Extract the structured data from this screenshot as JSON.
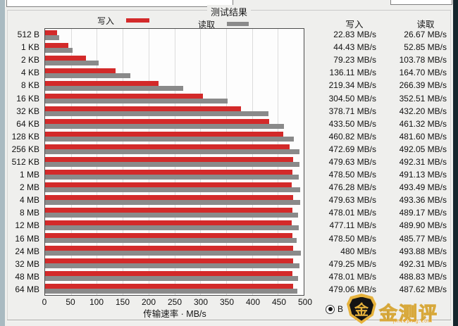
{
  "panel": {
    "groupbox_title": "测试结果",
    "legend": {
      "write_label": "写入",
      "read_label": "读取"
    },
    "colors": {
      "write": "#d32a2a",
      "read": "#8a8a8a",
      "plot_bg": "#fdfdfd",
      "grid": "#dcdcdc"
    },
    "radio_label": "B",
    "watermark": {
      "shield_char": "金",
      "brand": "金测评",
      "site": "jinceping.com"
    }
  },
  "chart_data": {
    "type": "bar",
    "orientation": "horizontal",
    "title": "测试结果",
    "xlabel": "传输速率 · MB/s",
    "xlim": [
      0,
      500
    ],
    "xticks": [
      0,
      50,
      100,
      150,
      200,
      250,
      300,
      350,
      400,
      450,
      500
    ],
    "grid": true,
    "legend_position": "top",
    "categories": [
      "512 B",
      "1 KB",
      "2 KB",
      "4 KB",
      "8 KB",
      "16 KB",
      "32 KB",
      "64 KB",
      "128 KB",
      "256 KB",
      "512 KB",
      "1 MB",
      "2 MB",
      "4 MB",
      "8 MB",
      "12 MB",
      "16 MB",
      "24 MB",
      "32 MB",
      "48 MB",
      "64 MB"
    ],
    "series": [
      {
        "name": "写入",
        "color": "#d32a2a",
        "values": [
          22.83,
          44.43,
          79.23,
          136.11,
          219.34,
          304.5,
          378.71,
          433.5,
          460.82,
          472.69,
          479.63,
          478.5,
          476.28,
          479.63,
          478.01,
          477.11,
          478.5,
          480,
          479.25,
          478.01,
          479.06
        ]
      },
      {
        "name": "读取",
        "color": "#8a8a8a",
        "values": [
          26.67,
          52.85,
          103.78,
          164.7,
          266.39,
          352.51,
          432.2,
          461.32,
          481.6,
          492.05,
          492.31,
          491.13,
          493.49,
          493.36,
          489.17,
          489.9,
          485.77,
          493.88,
          492.31,
          488.83,
          487.62
        ]
      }
    ]
  },
  "results_table": {
    "write_header": "写入",
    "read_header": "读取",
    "rows": [
      {
        "write": "22.83 MB/s",
        "read": "26.67 MB/s"
      },
      {
        "write": "44.43 MB/s",
        "read": "52.85 MB/s"
      },
      {
        "write": "79.23 MB/s",
        "read": "103.78 MB/s"
      },
      {
        "write": "136.11 MB/s",
        "read": "164.70 MB/s"
      },
      {
        "write": "219.34 MB/s",
        "read": "266.39 MB/s"
      },
      {
        "write": "304.50 MB/s",
        "read": "352.51 MB/s"
      },
      {
        "write": "378.71 MB/s",
        "read": "432.20 MB/s"
      },
      {
        "write": "433.50 MB/s",
        "read": "461.32 MB/s"
      },
      {
        "write": "460.82 MB/s",
        "read": "481.60 MB/s"
      },
      {
        "write": "472.69 MB/s",
        "read": "492.05 MB/s"
      },
      {
        "write": "479.63 MB/s",
        "read": "492.31 MB/s"
      },
      {
        "write": "478.50 MB/s",
        "read": "491.13 MB/s"
      },
      {
        "write": "476.28 MB/s",
        "read": "493.49 MB/s"
      },
      {
        "write": "479.63 MB/s",
        "read": "493.36 MB/s"
      },
      {
        "write": "478.01 MB/s",
        "read": "489.17 MB/s"
      },
      {
        "write": "477.11 MB/s",
        "read": "489.90 MB/s"
      },
      {
        "write": "478.50 MB/s",
        "read": "485.77 MB/s"
      },
      {
        "write": "480 MB/s",
        "read": "493.88 MB/s"
      },
      {
        "write": "479.25 MB/s",
        "read": "492.31 MB/s"
      },
      {
        "write": "478.01 MB/s",
        "read": "488.83 MB/s"
      },
      {
        "write": "479.06 MB/s",
        "read": "487.62 MB/s"
      }
    ]
  }
}
